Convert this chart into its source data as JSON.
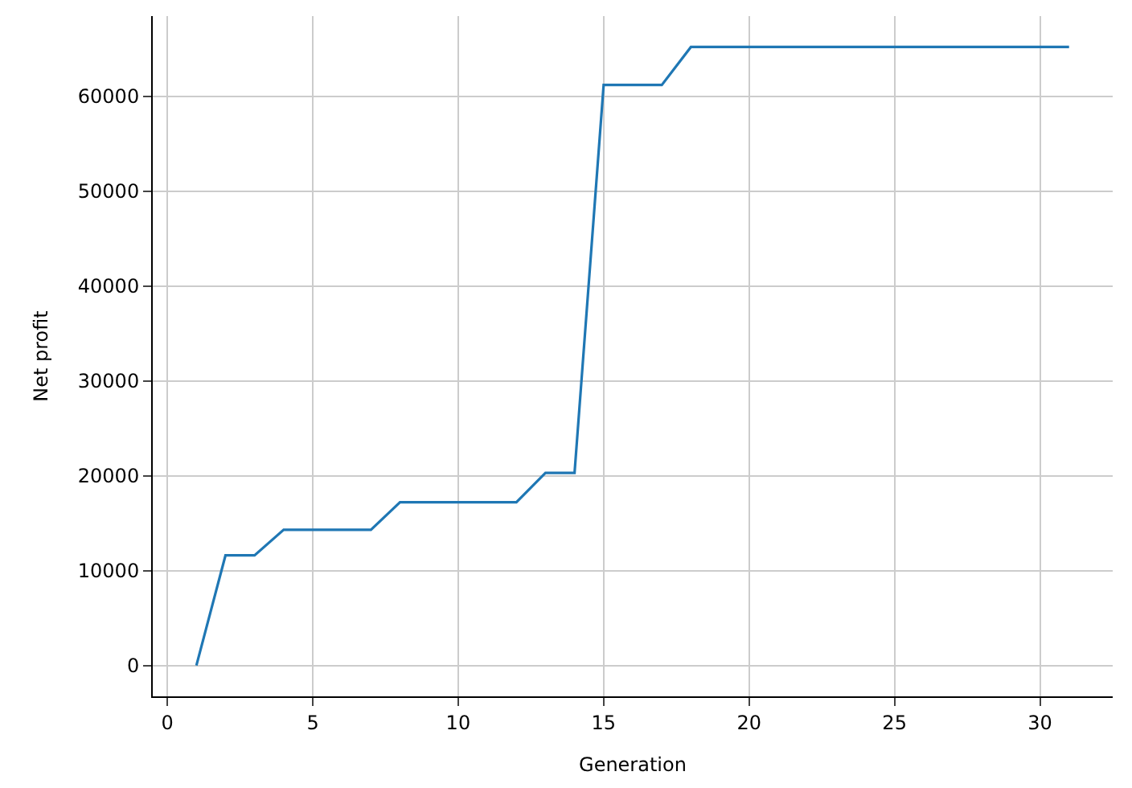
{
  "chart_data": {
    "type": "line",
    "xlabel": "Generation",
    "ylabel": "Net profit",
    "x": [
      1,
      2,
      3,
      4,
      7,
      8,
      12,
      13,
      14,
      15,
      17,
      18,
      31
    ],
    "series": [
      {
        "color": "#1f77b4",
        "values": [
          0,
          11600,
          11600,
          14300,
          14300,
          17200,
          17200,
          20300,
          20300,
          61200,
          61200,
          65200,
          65200
        ]
      }
    ],
    "xlim": [
      -0.5,
      32.5
    ],
    "xticks": [
      0,
      5,
      10,
      15,
      20,
      25,
      30
    ],
    "ylim": [
      -3260,
      68460
    ],
    "yticks": [
      0,
      10000,
      20000,
      30000,
      40000,
      50000,
      60000
    ],
    "grid": true,
    "legend": false
  }
}
